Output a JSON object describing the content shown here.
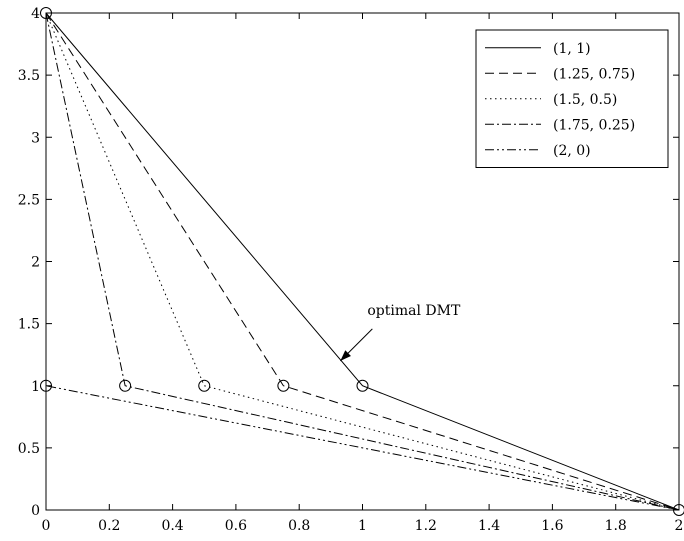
{
  "chart_data": {
    "type": "line",
    "title": "",
    "xlabel": "",
    "ylabel": "",
    "xlim": [
      0,
      2
    ],
    "ylim": [
      0,
      4
    ],
    "xticks": [
      0,
      0.2,
      0.4,
      0.6,
      0.8,
      1,
      1.2,
      1.4,
      1.6,
      1.8,
      2
    ],
    "xtick_labels": [
      "0",
      "0.2",
      "0.4",
      "0.6",
      "0.8",
      "1",
      "1.2",
      "1.4",
      "1.6",
      "1.8",
      "2"
    ],
    "yticks": [
      0,
      0.5,
      1,
      1.5,
      2,
      2.5,
      3,
      3.5,
      4
    ],
    "ytick_labels": [
      "0",
      "0.5",
      "1",
      "1.5",
      "2",
      "2.5",
      "3",
      "3.5",
      "4"
    ],
    "grid": false,
    "legend_position": "top-right",
    "series": [
      {
        "name": "(1, 1)",
        "line_style": "solid",
        "color": "#000000",
        "points": [
          [
            0,
            4
          ],
          [
            1,
            1
          ],
          [
            2,
            0
          ]
        ]
      },
      {
        "name": "(1.25, 0.75)",
        "line_style": "dashed",
        "color": "#000000",
        "points": [
          [
            0,
            4
          ],
          [
            0.75,
            1
          ],
          [
            2,
            0
          ]
        ]
      },
      {
        "name": "(1.5, 0.5)",
        "line_style": "dotted",
        "color": "#000000",
        "points": [
          [
            0,
            4
          ],
          [
            0.5,
            1
          ],
          [
            2,
            0
          ]
        ]
      },
      {
        "name": "(1.75, 0.25)",
        "line_style": "dashdot",
        "color": "#000000",
        "points": [
          [
            0,
            4
          ],
          [
            0.25,
            1
          ],
          [
            2,
            0
          ]
        ]
      },
      {
        "name": "(2, 0)",
        "line_style": "dashdotdot",
        "color": "#000000",
        "points": [
          [
            0,
            4
          ],
          [
            0,
            1
          ],
          [
            2,
            0
          ]
        ]
      }
    ],
    "markers": [
      [
        0,
        4
      ],
      [
        0,
        1
      ],
      [
        0.25,
        1
      ],
      [
        0.5,
        1
      ],
      [
        0.75,
        1
      ],
      [
        1,
        1
      ],
      [
        2,
        0
      ]
    ],
    "annotations": [
      {
        "text": "optimal DMT",
        "points_to": [
          0.93,
          1.2
        ]
      }
    ]
  }
}
